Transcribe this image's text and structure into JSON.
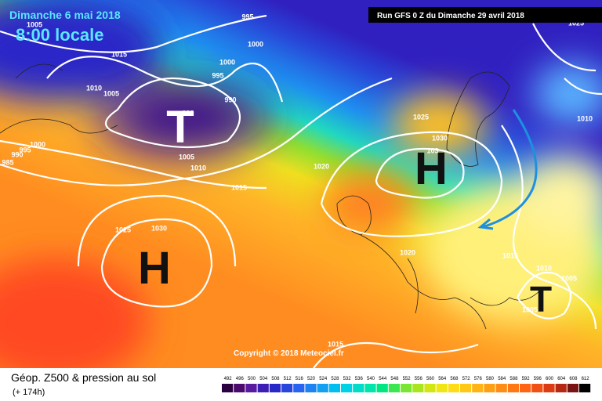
{
  "header": {
    "date": "Dimanche 6 mai 2018",
    "time": "8:00 locale",
    "run": "Run GFS 0 Z du Dimanche 29 avril 2018"
  },
  "footer": {
    "title": "Géop. Z500 & pression au sol",
    "lead": "(+ 174h)",
    "copyright": "Copyright © 2018 Meteociel.fr"
  },
  "pressure_centers": [
    {
      "label": "T"
    },
    {
      "label": "H"
    },
    {
      "label": "H"
    },
    {
      "label": "T"
    }
  ],
  "isobar_labels": [
    995,
    1000,
    1015,
    1000,
    995,
    1010,
    1005,
    990,
    990,
    1000,
    995,
    990,
    985,
    1005,
    1010,
    1015,
    1025,
    1030,
    1020,
    1025,
    1030,
    103,
    1020,
    1015,
    1010,
    1005,
    1005,
    1015,
    1025,
    1010,
    1005
  ],
  "scale": {
    "ticks": [
      492,
      496,
      500,
      504,
      508,
      512,
      516,
      520,
      524,
      528,
      532,
      536,
      540,
      544,
      548,
      552,
      556,
      560,
      564,
      568,
      572,
      576,
      580,
      584,
      588,
      592,
      596,
      600,
      604,
      608,
      612
    ],
    "colors": [
      "#2b0040",
      "#4b0a6e",
      "#5a1aa0",
      "#3c1eb4",
      "#2828c8",
      "#2846dc",
      "#2864f0",
      "#1e82f0",
      "#14a0f0",
      "#00bef0",
      "#00d2e6",
      "#00dcc8",
      "#00e6aa",
      "#00e682",
      "#3ce650",
      "#78e632",
      "#aae61e",
      "#d2e614",
      "#f0e614",
      "#ffdc14",
      "#ffc814",
      "#ffb414",
      "#ffa014",
      "#ff8c14",
      "#ff7814",
      "#ff6414",
      "#f05014",
      "#dc3c14",
      "#b42814",
      "#781414",
      "#000000"
    ]
  }
}
